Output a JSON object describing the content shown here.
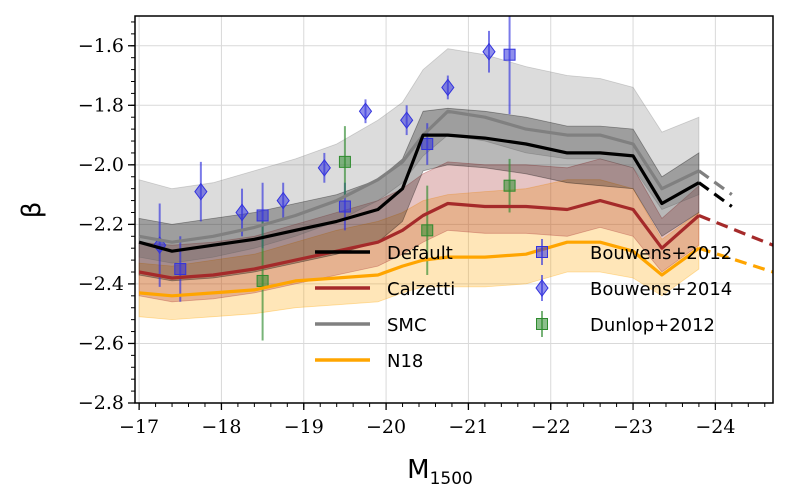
{
  "chart_data": {
    "type": "line",
    "xlabel": "M",
    "xlabel_sub": "1500",
    "ylabel": "β",
    "xlim": [
      -16.95,
      -24.7
    ],
    "ylim": [
      -2.8,
      -1.5
    ],
    "grid": true,
    "legend_placement": "lower-center",
    "xticks": [
      {
        "value": -17,
        "label": "−17"
      },
      {
        "value": -18,
        "label": "−18"
      },
      {
        "value": -19,
        "label": "−19"
      },
      {
        "value": -20,
        "label": "−20"
      },
      {
        "value": -21,
        "label": "−21"
      },
      {
        "value": -22,
        "label": "−22"
      },
      {
        "value": -23,
        "label": "−23"
      },
      {
        "value": -24,
        "label": "−24"
      }
    ],
    "yticks": [
      {
        "value": -1.6,
        "label": "−1.6"
      },
      {
        "value": -1.8,
        "label": "−1.8"
      },
      {
        "value": -2.0,
        "label": "−2.0"
      },
      {
        "value": -2.2,
        "label": "−2.2"
      },
      {
        "value": -2.4,
        "label": "−2.4"
      },
      {
        "value": -2.6,
        "label": "−2.6"
      },
      {
        "value": -2.8,
        "label": "−2.8"
      }
    ],
    "series": [
      {
        "name": "Default",
        "color": "#000000",
        "x": [
          -17.0,
          -17.4,
          -17.9,
          -18.4,
          -18.9,
          -19.4,
          -19.9,
          -20.2,
          -20.45,
          -20.75,
          -21.2,
          -21.7,
          -22.2,
          -22.6,
          -23.0,
          -23.35,
          -23.8
        ],
        "y": [
          -2.26,
          -2.29,
          -2.27,
          -2.25,
          -2.22,
          -2.19,
          -2.15,
          -2.08,
          -1.9,
          -1.9,
          -1.91,
          -1.93,
          -1.96,
          -1.96,
          -1.97,
          -2.13,
          -2.06
        ],
        "ext_x": [
          -23.8,
          -24.2
        ],
        "ext_y": [
          -2.06,
          -2.14
        ],
        "band_lo": [
          -2.37,
          -2.39,
          -2.38,
          -2.36,
          -2.33,
          -2.3,
          -2.26,
          -2.19,
          -2.02,
          -2.0,
          -2.01,
          -2.03,
          -2.06,
          -2.07,
          -2.08,
          -2.24,
          -2.16
        ],
        "band_hi": [
          -2.18,
          -2.2,
          -2.18,
          -2.16,
          -2.13,
          -2.1,
          -2.05,
          -1.98,
          -1.82,
          -1.81,
          -1.82,
          -1.84,
          -1.87,
          -1.87,
          -1.88,
          -2.04,
          -1.96
        ]
      },
      {
        "name": "Calzetti",
        "color": "#a52a2a",
        "x": [
          -17.0,
          -17.4,
          -17.9,
          -18.4,
          -18.9,
          -19.4,
          -19.9,
          -20.2,
          -20.45,
          -20.75,
          -21.2,
          -21.7,
          -22.2,
          -22.6,
          -23.0,
          -23.35,
          -23.8
        ],
        "y": [
          -2.36,
          -2.38,
          -2.37,
          -2.35,
          -2.32,
          -2.29,
          -2.26,
          -2.22,
          -2.17,
          -2.13,
          -2.14,
          -2.14,
          -2.15,
          -2.12,
          -2.15,
          -2.28,
          -2.17
        ],
        "ext_x": [
          -23.8,
          -24.7
        ],
        "ext_y": [
          -2.17,
          -2.27
        ],
        "band_lo": [
          -2.44,
          -2.46,
          -2.45,
          -2.43,
          -2.4,
          -2.37,
          -2.34,
          -2.3,
          -2.26,
          -2.22,
          -2.23,
          -2.23,
          -2.24,
          -2.21,
          -2.24,
          -2.36,
          -2.27
        ],
        "band_hi": [
          -2.26,
          -2.27,
          -2.26,
          -2.24,
          -2.2,
          -2.16,
          -2.12,
          -2.08,
          -2.03,
          -1.99,
          -2.0,
          -2.0,
          -2.01,
          -1.98,
          -2.01,
          -2.18,
          -2.07
        ]
      },
      {
        "name": "SMC",
        "color": "#808080",
        "x": [
          -17.0,
          -17.4,
          -17.9,
          -18.4,
          -18.9,
          -19.4,
          -19.9,
          -20.2,
          -20.45,
          -20.75,
          -21.2,
          -21.7,
          -22.2,
          -22.6,
          -23.0,
          -23.35,
          -23.8
        ],
        "y": [
          -2.24,
          -2.26,
          -2.24,
          -2.21,
          -2.17,
          -2.12,
          -2.05,
          -1.99,
          -1.9,
          -1.82,
          -1.84,
          -1.88,
          -1.9,
          -1.9,
          -1.93,
          -2.08,
          -2.02
        ],
        "ext_x": [
          -23.8,
          -24.2
        ],
        "ext_y": [
          -2.02,
          -2.1
        ],
        "band_lo": [
          -2.31,
          -2.33,
          -2.31,
          -2.28,
          -2.24,
          -2.19,
          -2.12,
          -2.06,
          -1.97,
          -1.9,
          -1.92,
          -1.96,
          -1.98,
          -1.98,
          -2.01,
          -2.15,
          -2.1
        ],
        "band_hi": [
          -2.05,
          -2.08,
          -2.06,
          -2.02,
          -1.98,
          -1.93,
          -1.85,
          -1.79,
          -1.68,
          -1.61,
          -1.63,
          -1.67,
          -1.7,
          -1.71,
          -1.74,
          -1.89,
          -1.84
        ]
      },
      {
        "name": "N18",
        "color": "#ffa500",
        "x": [
          -17.0,
          -17.4,
          -17.9,
          -18.4,
          -18.9,
          -19.4,
          -19.9,
          -20.2,
          -20.45,
          -20.75,
          -21.2,
          -21.7,
          -22.2,
          -22.6,
          -23.0,
          -23.35,
          -23.8
        ],
        "y": [
          -2.43,
          -2.44,
          -2.43,
          -2.42,
          -2.39,
          -2.38,
          -2.37,
          -2.34,
          -2.32,
          -2.31,
          -2.31,
          -2.3,
          -2.26,
          -2.26,
          -2.29,
          -2.37,
          -2.28
        ],
        "ext_x": [
          -23.8,
          -24.7
        ],
        "ext_y": [
          -2.28,
          -2.36
        ],
        "band_lo": [
          -2.51,
          -2.52,
          -2.51,
          -2.5,
          -2.48,
          -2.47,
          -2.46,
          -2.43,
          -2.41,
          -2.41,
          -2.41,
          -2.4,
          -2.36,
          -2.36,
          -2.38,
          -2.44,
          -2.35
        ],
        "band_hi": [
          -2.33,
          -2.34,
          -2.32,
          -2.3,
          -2.26,
          -2.22,
          -2.19,
          -2.16,
          -2.12,
          -2.1,
          -2.09,
          -2.08,
          -2.05,
          -2.05,
          -2.08,
          -2.25,
          -2.16
        ]
      }
    ],
    "observations": [
      {
        "name": "Bouwens+2012",
        "color": "#3333dd",
        "marker": "square",
        "points": [
          {
            "x": -17.5,
            "y": -2.35,
            "err": 0.11
          },
          {
            "x": -18.5,
            "y": -2.17,
            "err": 0.11
          },
          {
            "x": -19.5,
            "y": -2.14,
            "err": 0.08
          },
          {
            "x": -20.5,
            "y": -1.93,
            "err": 0.07
          },
          {
            "x": -21.5,
            "y": -1.63,
            "err": 0.2
          }
        ]
      },
      {
        "name": "Bouwens+2014",
        "color": "#3333dd",
        "marker": "diamond",
        "points": [
          {
            "x": -17.25,
            "y": -2.27,
            "err": 0.14
          },
          {
            "x": -17.75,
            "y": -2.09,
            "err": 0.1
          },
          {
            "x": -18.25,
            "y": -2.16,
            "err": 0.08
          },
          {
            "x": -18.75,
            "y": -2.12,
            "err": 0.06
          },
          {
            "x": -19.25,
            "y": -2.01,
            "err": 0.05
          },
          {
            "x": -19.75,
            "y": -1.82,
            "err": 0.04
          },
          {
            "x": -20.25,
            "y": -1.85,
            "err": 0.05
          },
          {
            "x": -20.75,
            "y": -1.74,
            "err": 0.04
          },
          {
            "x": -21.25,
            "y": -1.62,
            "err": 0.07
          }
        ]
      },
      {
        "name": "Dunlop+2012",
        "color": "#2e8b2e",
        "marker": "square",
        "points": [
          {
            "x": -18.5,
            "y": -2.39,
            "err": 0.2
          },
          {
            "x": -19.5,
            "y": -1.99,
            "err": 0.12
          },
          {
            "x": -20.5,
            "y": -2.22,
            "err": 0.15
          },
          {
            "x": -21.5,
            "y": -2.07,
            "err": 0.09
          }
        ]
      }
    ]
  }
}
